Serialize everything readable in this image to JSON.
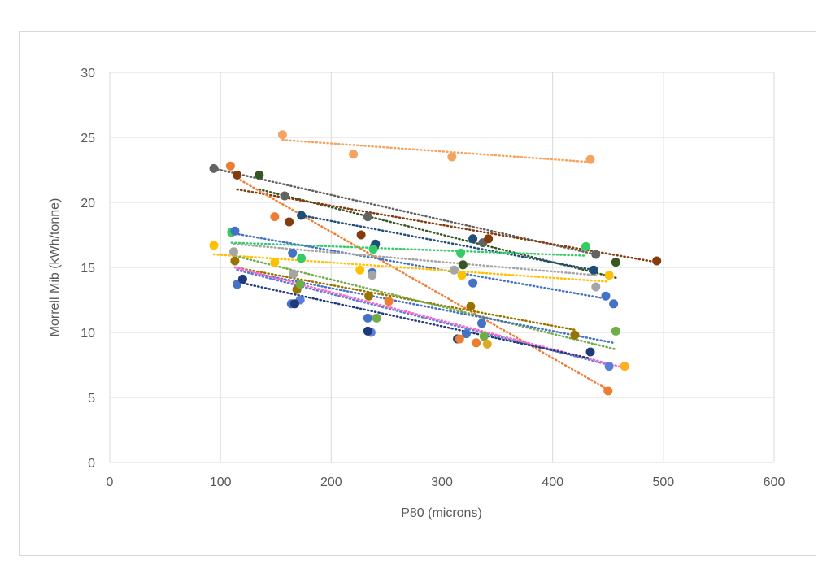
{
  "chart_data": {
    "type": "scatter",
    "xlabel": "P80 (microns)",
    "ylabel": "Morrell Mib (kWh/tonne)",
    "xlim": [
      0,
      600
    ],
    "ylim": [
      0,
      30
    ],
    "xticks": [
      0,
      100,
      200,
      300,
      400,
      500,
      600
    ],
    "yticks": [
      0,
      5,
      10,
      15,
      20,
      25,
      30
    ],
    "grid": true,
    "trendlines": "dotted",
    "series": [
      {
        "color": "#F4A460",
        "points": [
          [
            156,
            25.2
          ],
          [
            220,
            23.7
          ],
          [
            309,
            23.5
          ],
          [
            434,
            23.3
          ]
        ],
        "trend": [
          [
            156,
            24.8
          ],
          [
            434,
            23.1
          ]
        ]
      },
      {
        "color": "#636363",
        "points": [
          [
            94,
            22.6
          ],
          [
            158,
            20.5
          ],
          [
            233,
            18.9
          ],
          [
            337,
            16.9
          ],
          [
            439,
            16.0
          ]
        ],
        "trend": [
          [
            94,
            22.6
          ],
          [
            439,
            16.0
          ]
        ]
      },
      {
        "color": "#375623",
        "points": [
          [
            135,
            22.1
          ],
          [
            239,
            16.6
          ],
          [
            319,
            15.2
          ],
          [
            457,
            15.4
          ]
        ],
        "trend": [
          [
            135,
            21.0
          ],
          [
            457,
            14.2
          ]
        ]
      },
      {
        "color": "#843C0C",
        "points": [
          [
            115,
            22.1
          ],
          [
            162,
            18.5
          ],
          [
            227,
            17.5
          ],
          [
            342,
            17.2
          ],
          [
            494,
            15.5
          ]
        ],
        "trend": [
          [
            115,
            21.0
          ],
          [
            494,
            15.4
          ]
        ]
      },
      {
        "color": "#ED7D31",
        "points": [
          [
            109,
            22.8
          ],
          [
            149,
            18.9
          ],
          [
            252,
            12.4
          ],
          [
            331,
            9.2
          ],
          [
            450,
            5.5
          ]
        ],
        "trend": [
          [
            112,
            22.0
          ],
          [
            450,
            5.6
          ]
        ]
      },
      {
        "color": "#1F4E79",
        "points": [
          [
            173,
            19.0
          ],
          [
            240,
            16.8
          ],
          [
            328,
            17.2
          ],
          [
            437,
            14.8
          ]
        ],
        "trend": [
          [
            173,
            19.0
          ],
          [
            437,
            14.8
          ]
        ]
      },
      {
        "color": "#33CC66",
        "points": [
          [
            110,
            17.7
          ],
          [
            173,
            15.7
          ],
          [
            238,
            16.4
          ],
          [
            317,
            16.1
          ],
          [
            430,
            16.6
          ]
        ],
        "trend": [
          [
            110,
            16.9
          ],
          [
            430,
            15.9
          ]
        ]
      },
      {
        "color": "#4472C4",
        "points": [
          [
            113,
            17.8
          ],
          [
            165,
            16.1
          ],
          [
            237,
            14.6
          ],
          [
            328,
            13.8
          ],
          [
            448,
            12.8
          ]
        ],
        "trend": [
          [
            113,
            17.6
          ],
          [
            448,
            12.6
          ]
        ]
      },
      {
        "color": "#A5A5A5",
        "points": [
          [
            112,
            16.2
          ],
          [
            166,
            14.5
          ],
          [
            237,
            14.4
          ],
          [
            311,
            14.8
          ],
          [
            439,
            13.5
          ]
        ],
        "trend": [
          [
            112,
            16.8
          ],
          [
            439,
            14.4
          ]
        ]
      },
      {
        "color": "#FFC000",
        "points": [
          [
            94,
            16.7
          ],
          [
            149,
            15.4
          ],
          [
            226,
            14.8
          ],
          [
            318,
            14.4
          ],
          [
            451,
            14.4
          ]
        ],
        "trend": [
          [
            94,
            16.0
          ],
          [
            451,
            13.9
          ]
        ]
      },
      {
        "color": "#997300",
        "points": [
          [
            113,
            15.5
          ],
          [
            169,
            13.3
          ],
          [
            234,
            12.8
          ],
          [
            326,
            12.0
          ],
          [
            420,
            9.8
          ]
        ],
        "trend": [
          [
            113,
            15.0
          ],
          [
            420,
            10.2
          ]
        ]
      },
      {
        "color": "#70AD47",
        "points": [
          [
            172,
            13.7
          ],
          [
            241,
            11.1
          ],
          [
            338,
            9.7
          ],
          [
            457,
            10.1
          ]
        ],
        "trend": [
          [
            117,
            15.8
          ],
          [
            457,
            8.7
          ]
        ]
      },
      {
        "color": "#4472C4",
        "points": [
          [
            115,
            13.7
          ],
          [
            164,
            12.2
          ],
          [
            233,
            11.1
          ],
          [
            322,
            9.9
          ],
          [
            336,
            10.7
          ],
          [
            455,
            12.2
          ]
        ],
        "trend": [
          [
            115,
            14.8
          ],
          [
            455,
            9.2
          ]
        ]
      },
      {
        "color": "#5B7FD6",
        "points": [
          [
            172,
            12.5
          ],
          [
            236,
            10.0
          ],
          [
            451,
            7.4
          ]
        ],
        "trend": [
          [
            115,
            14.8
          ],
          [
            451,
            7.5
          ]
        ]
      },
      {
        "color": "#FF66CC",
        "points": [],
        "trend": [
          [
            113,
            15.0
          ],
          [
            464,
            7.3
          ]
        ]
      },
      {
        "color": "#1F3A7A",
        "points": [
          [
            120,
            14.1
          ],
          [
            167,
            12.2
          ],
          [
            233,
            10.1
          ],
          [
            314,
            9.5
          ],
          [
            434,
            8.5
          ]
        ],
        "trend": [
          [
            114,
            13.9
          ],
          [
            434,
            8.0
          ]
        ]
      },
      {
        "color": "#FFB01F",
        "points": [
          [
            465,
            7.4
          ]
        ],
        "trend": []
      },
      {
        "color": "#ED7D31",
        "points": [
          [
            316,
            9.5
          ]
        ],
        "trend": []
      },
      {
        "color": "#DDAA22",
        "points": [
          [
            341,
            9.1
          ]
        ],
        "trend": []
      }
    ]
  },
  "axes": {
    "xlabel": "P80 (microns)",
    "ylabel": "Morrell Mib (kWh/tonne)"
  }
}
